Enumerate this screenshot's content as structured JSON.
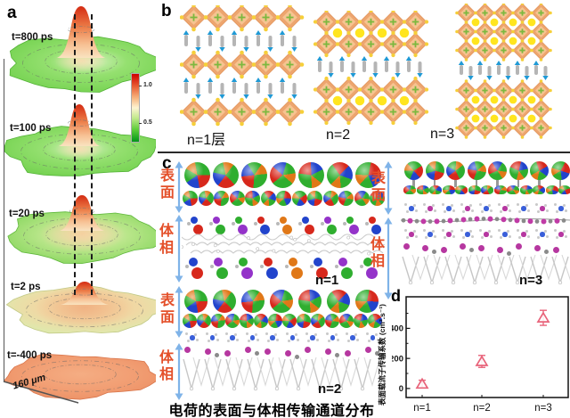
{
  "panel_a": {
    "label": "a",
    "surfaces": [
      {
        "label": "t=800 ps",
        "peak": 1.0,
        "base": "green"
      },
      {
        "label": "t=100 ps",
        "peak": 0.8,
        "base": "green"
      },
      {
        "label": "t=20 ps",
        "peak": 0.62,
        "base": "warm-green"
      },
      {
        "label": "t=2 ps",
        "peak": 0.33,
        "base": "warm"
      },
      {
        "label": "t=-400 ps",
        "peak": 0.0,
        "base": "orange"
      }
    ],
    "colorbar": {
      "tick_high": "1.0",
      "tick_low": "0.5",
      "top_color": "#cf0000",
      "mid_color": "#fdf4d2",
      "bottom_color": "#009618"
    },
    "scale_label": "160 μm"
  },
  "panel_b": {
    "label": "b",
    "structures": [
      {
        "label": "n=1层",
        "n": 1,
        "cols": 5,
        "blocks": 3
      },
      {
        "label": "n=2",
        "n": 2,
        "cols": 5,
        "blocks": 2
      },
      {
        "label": "n=3",
        "n": 3,
        "cols": 5,
        "blocks": 2
      }
    ],
    "colors": {
      "octahedron": "#eda56f",
      "octahedron_inner": "#f6c491",
      "corner": "#f6cf3a",
      "cation": "#ffe51f",
      "center_cross": "#7cb83f",
      "spacer_body": "#b5b5b5",
      "spacer_tip": "#1f9ad6"
    }
  },
  "panel_c": {
    "label": "c",
    "surface_label": "表面",
    "bulk_label": "体相",
    "label_color": "#e4502a",
    "arrow_color": "#7fb3e8",
    "sections": [
      {
        "label": "n=1"
      },
      {
        "label": "n=2"
      },
      {
        "label": "n=3"
      }
    ],
    "caption": "电荷的表面与体相传输通道分布"
  },
  "panel_d": {
    "label": "d"
  },
  "chart_data": {
    "type": "scatter",
    "categories": [
      "n=1",
      "n=2",
      "n=3"
    ],
    "values": [
      30,
      180,
      470
    ],
    "errors": [
      25,
      40,
      50
    ],
    "ylabel": "表面载流子传输系数 (cm².s⁻¹)",
    "xlabel": "",
    "yticks": [
      0,
      200,
      400
    ],
    "minor_yticks": [
      100,
      300,
      500
    ],
    "ylim": [
      -60,
      610
    ],
    "marker": "open-triangle",
    "marker_color": "#e8637a",
    "grid": false
  }
}
